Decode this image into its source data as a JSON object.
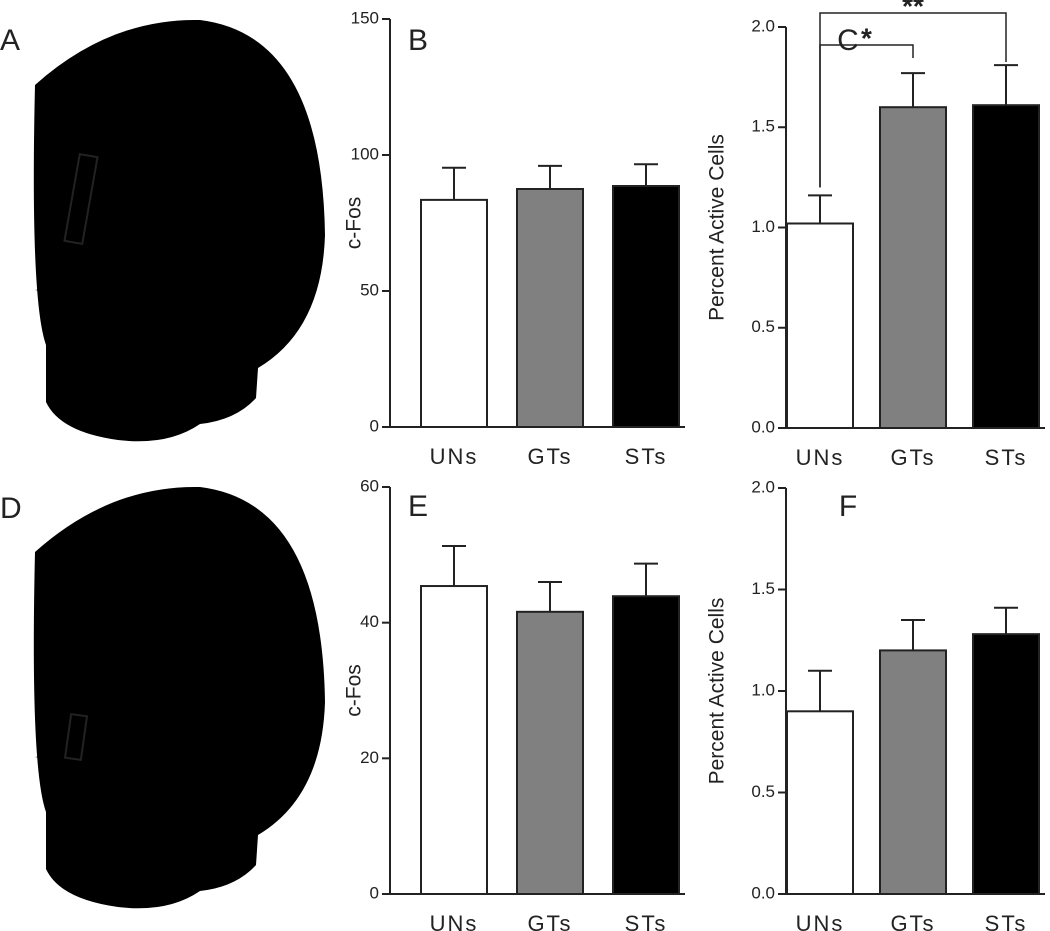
{
  "panels": [
    {
      "label": "A"
    },
    {
      "label": "D"
    }
  ],
  "chart_data": [
    {
      "type": "bar",
      "label": "B",
      "ylabel": "c-Fos",
      "categories": [
        "UNs",
        "GTs",
        "STs"
      ],
      "colors": [
        "#ffffff",
        "#808080",
        "#000000"
      ],
      "values": [
        83.5,
        87.5,
        88.6
      ],
      "errors": [
        11.8,
        8.5,
        8
      ],
      "ylim": [
        0,
        150
      ],
      "yticks": [
        0,
        50,
        100,
        150
      ]
    },
    {
      "type": "bar",
      "label": "C",
      "ylabel": "Percent Active Cells",
      "categories": [
        "UNs",
        "GTs",
        "STs"
      ],
      "colors": [
        "#ffffff",
        "#808080",
        "#000000"
      ],
      "values": [
        1.02,
        1.6,
        1.61
      ],
      "errors": [
        0.14,
        0.17,
        0.2
      ],
      "ylim": [
        0,
        2
      ],
      "yticks": [
        {
          "value": 0,
          "label": "0.0"
        },
        0.5,
        {
          "value": 1,
          "label": "1.0"
        },
        1.5,
        {
          "value": 2,
          "label": "2.0"
        }
      ],
      "annotations": [
        "*",
        "**"
      ]
    },
    {
      "type": "bar",
      "label": "E",
      "ylabel": "c-Fos",
      "categories": [
        "UNs",
        "GTs",
        "STs"
      ],
      "colors": [
        "#ffffff",
        "#808080",
        "#000000"
      ],
      "values": [
        45.4,
        41.6,
        43.9
      ],
      "errors": [
        5.9,
        4.4,
        4.8
      ],
      "ylim": [
        0,
        60
      ],
      "yticks": [
        0,
        20,
        40,
        60
      ]
    },
    {
      "type": "bar",
      "label": "F",
      "ylabel": "Percent Active Cells",
      "categories": [
        "UNs",
        "GTs",
        "STs"
      ],
      "colors": [
        "#ffffff",
        "#808080",
        "#000000"
      ],
      "values": [
        0.9,
        1.2,
        1.28
      ],
      "errors": [
        0.2,
        0.15,
        0.13
      ],
      "ylim": [
        0,
        2
      ],
      "yticks": [
        {
          "value": 0,
          "label": "0.0"
        },
        0.5,
        {
          "value": 1,
          "label": "1.0"
        },
        1.5,
        {
          "value": 2,
          "label": "2.0"
        }
      ]
    }
  ]
}
